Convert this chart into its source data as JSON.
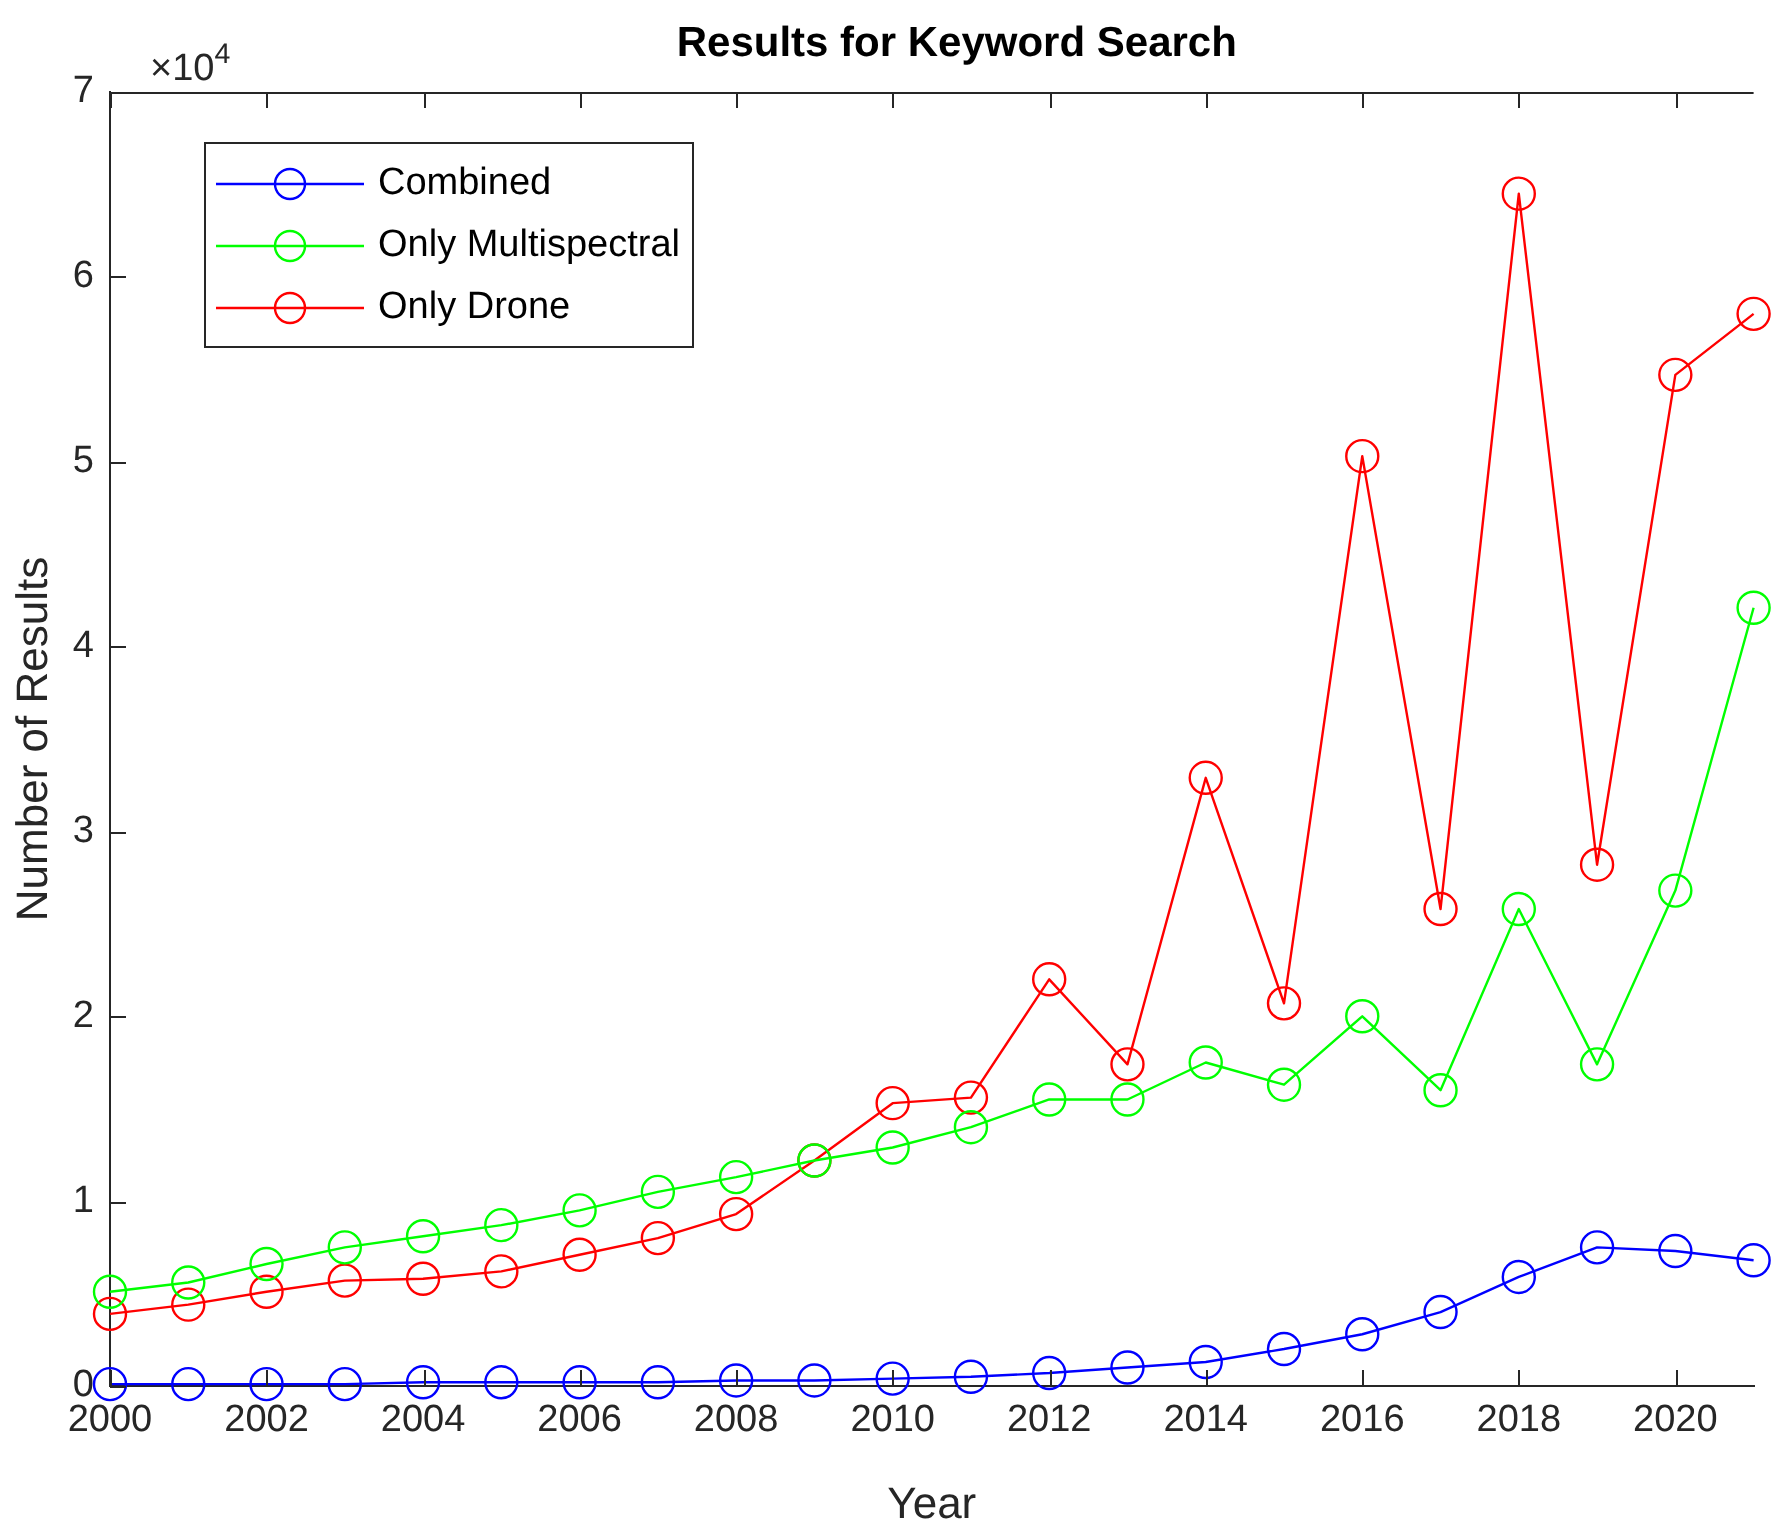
{
  "chart_data": {
    "type": "line",
    "title": "Results for Keyword Search",
    "xlabel": "Year",
    "ylabel": "Number of Results",
    "x": [
      2000,
      2001,
      2002,
      2003,
      2004,
      2005,
      2006,
      2007,
      2008,
      2009,
      2010,
      2011,
      2012,
      2013,
      2014,
      2015,
      2016,
      2017,
      2018,
      2019,
      2020,
      2021
    ],
    "series": [
      {
        "name": "Combined",
        "color": "#0000ff",
        "values": [
          0.01,
          0.01,
          0.01,
          0.01,
          0.02,
          0.02,
          0.02,
          0.02,
          0.03,
          0.03,
          0.04,
          0.05,
          0.07,
          0.1,
          0.13,
          0.2,
          0.28,
          0.4,
          0.59,
          0.75,
          0.73,
          0.68
        ]
      },
      {
        "name": "Only Multispectral",
        "color": "#00ff00",
        "values": [
          0.51,
          0.56,
          0.66,
          0.75,
          0.81,
          0.87,
          0.95,
          1.05,
          1.13,
          1.22,
          1.29,
          1.4,
          1.55,
          1.55,
          1.75,
          1.63,
          2,
          1.6,
          2.58,
          1.74,
          2.68,
          4.21
        ]
      },
      {
        "name": "Only Drone",
        "color": "#ff0000",
        "values": [
          0.39,
          0.44,
          0.51,
          0.57,
          0.58,
          0.62,
          0.71,
          0.8,
          0.93,
          1.22,
          1.53,
          1.56,
          2.2,
          1.74,
          3.29,
          2.07,
          5.03,
          2.58,
          6.45,
          2.82,
          5.47,
          5.8
        ]
      }
    ],
    "xlim": [
      2000,
      2021
    ],
    "xticks": [
      2000,
      2002,
      2004,
      2006,
      2008,
      2010,
      2012,
      2014,
      2016,
      2018,
      2020
    ],
    "ylim": [
      0,
      7
    ],
    "yticks": [
      0,
      1,
      2,
      3,
      4,
      5,
      6,
      7
    ],
    "annotations": [
      "×10$^{4}$"
    ],
    "grid": false,
    "legend": "top left",
    "marker": "circle",
    "line_style": "solid"
  }
}
